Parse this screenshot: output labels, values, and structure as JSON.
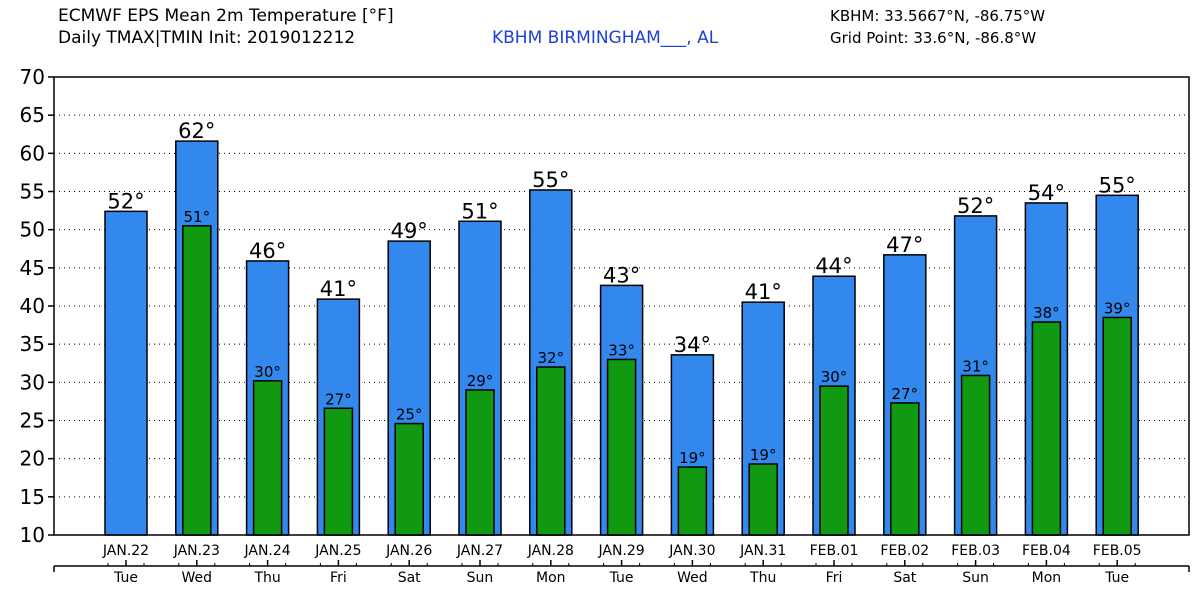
{
  "header": {
    "title_line1": "ECMWF EPS Mean 2m Temperature [°F]",
    "title_line2": "Daily TMAX|TMIN Init: 2019012212",
    "location": "KBHM BIRMINGHAM___, AL",
    "station": "KBHM: 33.5667°N, -86.75°W",
    "grid_point": "Grid Point: 33.6°N, -86.8°W"
  },
  "colors": {
    "tmax": "#3388ee",
    "tmin": "#119911",
    "outline": "#000000"
  },
  "chart_data": {
    "type": "bar",
    "ylim": [
      10,
      70
    ],
    "yticks": [
      10,
      15,
      20,
      25,
      30,
      35,
      40,
      45,
      50,
      55,
      60,
      65,
      70
    ],
    "grid": true,
    "categories": [
      "JAN.22",
      "JAN.23",
      "JAN.24",
      "JAN.25",
      "JAN.26",
      "JAN.27",
      "JAN.28",
      "JAN.29",
      "JAN.30",
      "JAN.31",
      "FEB.01",
      "FEB.02",
      "FEB.03",
      "FEB.04",
      "FEB.05"
    ],
    "weekdays": [
      "Tue",
      "Wed",
      "Thu",
      "Fri",
      "Sat",
      "Sun",
      "Mon",
      "Tue",
      "Wed",
      "Thu",
      "Fri",
      "Sat",
      "Sun",
      "Mon",
      "Tue"
    ],
    "series": [
      {
        "key": "tmax",
        "values": [
          52.4,
          61.6,
          45.9,
          40.9,
          48.5,
          51.1,
          55.2,
          42.7,
          33.6,
          40.5,
          43.9,
          46.7,
          51.8,
          53.5,
          54.5
        ],
        "labels": [
          "52°",
          "62°",
          "46°",
          "41°",
          "49°",
          "51°",
          "55°",
          "43°",
          "34°",
          "41°",
          "44°",
          "47°",
          "52°",
          "54°",
          "55°"
        ]
      },
      {
        "key": "tmin",
        "values": [
          null,
          50.5,
          30.2,
          26.6,
          24.6,
          29.0,
          32.0,
          33.0,
          18.9,
          19.3,
          29.5,
          27.3,
          30.9,
          37.9,
          38.5
        ],
        "labels": [
          "",
          "51°",
          "30°",
          "27°",
          "25°",
          "29°",
          "32°",
          "33°",
          "19°",
          "19°",
          "30°",
          "27°",
          "31°",
          "38°",
          "39°"
        ]
      }
    ]
  }
}
